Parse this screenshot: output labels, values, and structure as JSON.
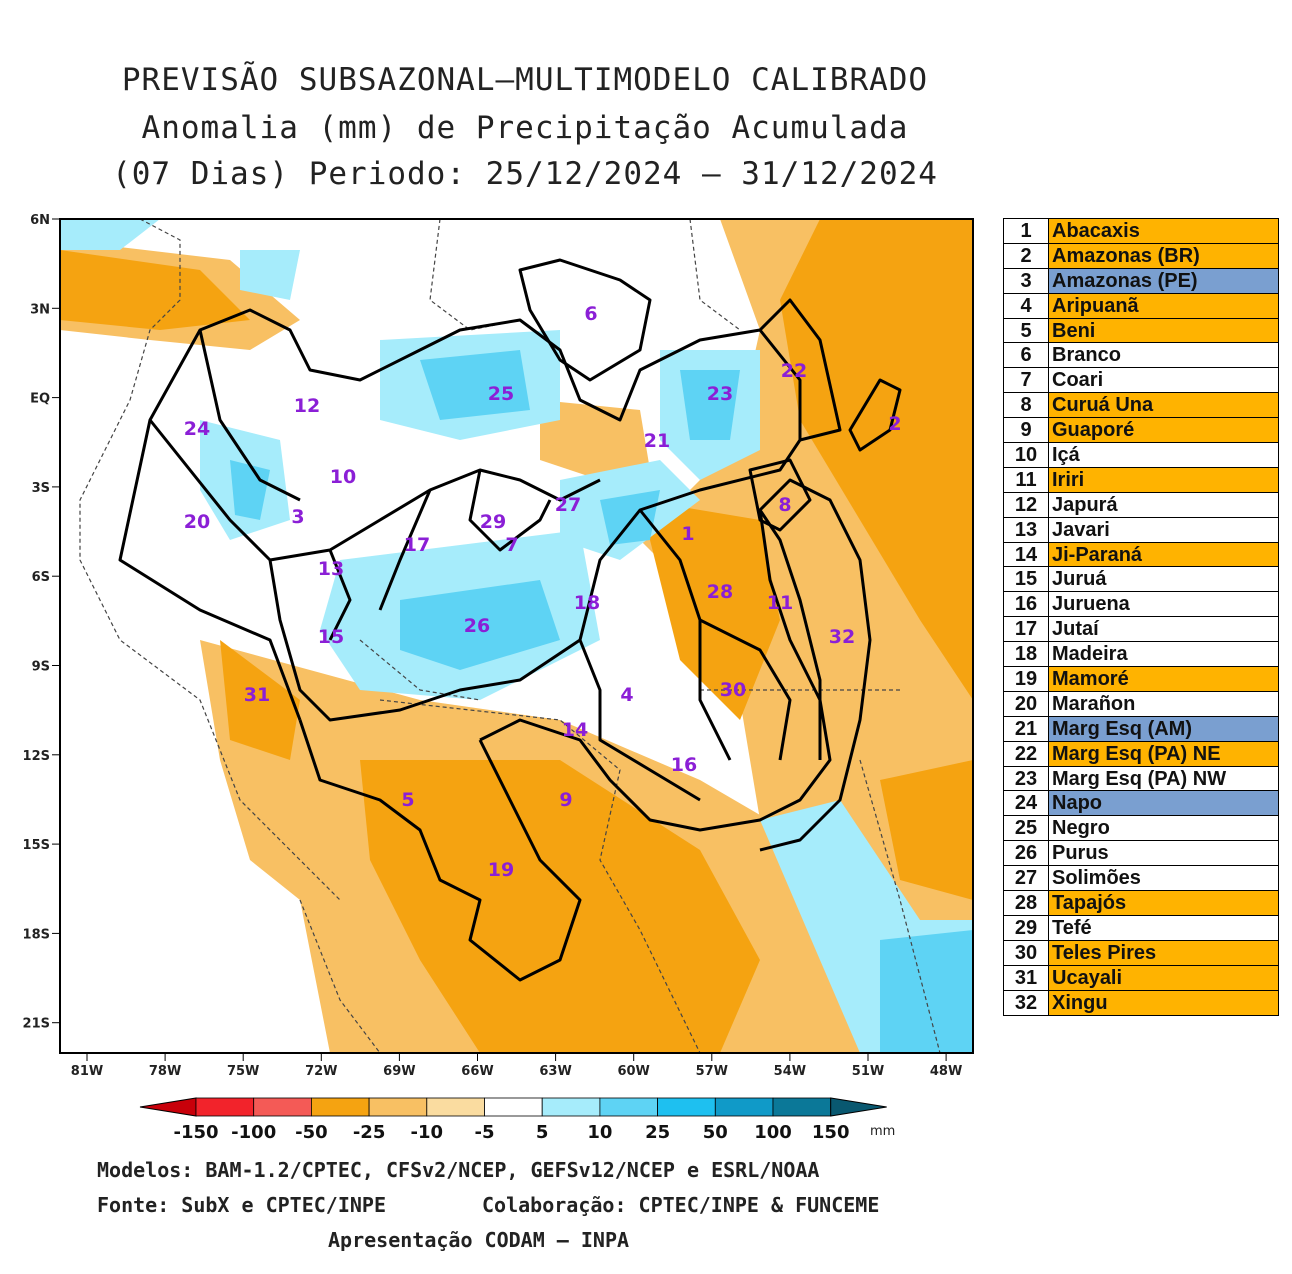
{
  "title": {
    "line1": "PREVISÃO SUBSAZONAL—MULTIMODELO CALIBRADO",
    "line2": "Anomalia (mm) de Precipitação Acumulada",
    "line3": "(07 Dias) Periodo: 25/12/2024 — 31/12/2024"
  },
  "map": {
    "lat_labels": [
      "6N",
      "3N",
      "EQ",
      "3S",
      "6S",
      "9S",
      "12S",
      "15S",
      "18S",
      "21S"
    ],
    "lon_labels": [
      "81W",
      "78W",
      "75W",
      "72W",
      "69W",
      "66W",
      "63W",
      "60W",
      "57W",
      "54W",
      "51W",
      "48W"
    ],
    "basin_labels": [
      "1",
      "2",
      "3",
      "4",
      "5",
      "6",
      "7",
      "8",
      "9",
      "10",
      "11",
      "12",
      "13",
      "14",
      "15",
      "16",
      "17",
      "18",
      "19",
      "20",
      "21",
      "22",
      "23",
      "24",
      "25",
      "26",
      "27",
      "28",
      "29",
      "30",
      "31",
      "32"
    ]
  },
  "colorbar": {
    "labels": [
      "-150",
      "-100",
      "-50",
      "-25",
      "-10",
      "-5",
      "5",
      "10",
      "25",
      "50",
      "100",
      "150"
    ],
    "unit": "mm",
    "colors": [
      "#c8000a",
      "#f2232b",
      "#f45a56",
      "#f5a311",
      "#f8c063",
      "#fadca0",
      "#ffffff",
      "#a6ecfb",
      "#5ed3f4",
      "#1ec0f0",
      "#109ac8",
      "#0b7898",
      "#095870"
    ]
  },
  "legend": [
    {
      "n": "1",
      "name": "Abacaxis",
      "color": "#ffb300"
    },
    {
      "n": "2",
      "name": "Amazonas (BR)",
      "color": "#ffb300"
    },
    {
      "n": "3",
      "name": "Amazonas (PE)",
      "color": "#7a9fd0"
    },
    {
      "n": "4",
      "name": "Aripuanã",
      "color": "#ffb300"
    },
    {
      "n": "5",
      "name": "Beni",
      "color": "#ffb300"
    },
    {
      "n": "6",
      "name": "Branco",
      "color": "#ffffff"
    },
    {
      "n": "7",
      "name": "Coari",
      "color": "#ffffff"
    },
    {
      "n": "8",
      "name": "Curuá Una",
      "color": "#ffb300"
    },
    {
      "n": "9",
      "name": "Guaporé",
      "color": "#ffb300"
    },
    {
      "n": "10",
      "name": "Içá",
      "color": "#ffffff"
    },
    {
      "n": "11",
      "name": "Iriri",
      "color": "#ffb300"
    },
    {
      "n": "12",
      "name": "Japurá",
      "color": "#ffffff"
    },
    {
      "n": "13",
      "name": "Javari",
      "color": "#ffffff"
    },
    {
      "n": "14",
      "name": "Ji-Paraná",
      "color": "#ffb300"
    },
    {
      "n": "15",
      "name": "Juruá",
      "color": "#ffffff"
    },
    {
      "n": "16",
      "name": "Juruena",
      "color": "#ffffff"
    },
    {
      "n": "17",
      "name": "Jutaí",
      "color": "#ffffff"
    },
    {
      "n": "18",
      "name": "Madeira",
      "color": "#ffffff"
    },
    {
      "n": "19",
      "name": "Mamoré",
      "color": "#ffb300"
    },
    {
      "n": "20",
      "name": "Marañon",
      "color": "#ffffff"
    },
    {
      "n": "21",
      "name": "Marg Esq (AM)",
      "color": "#7a9fd0"
    },
    {
      "n": "22",
      "name": "Marg Esq (PA) NE",
      "color": "#ffb300"
    },
    {
      "n": "23",
      "name": "Marg Esq (PA) NW",
      "color": "#ffffff"
    },
    {
      "n": "24",
      "name": "Napo",
      "color": "#7a9fd0"
    },
    {
      "n": "25",
      "name": "Negro",
      "color": "#ffffff"
    },
    {
      "n": "26",
      "name": "Purus",
      "color": "#ffffff"
    },
    {
      "n": "27",
      "name": "Solimões",
      "color": "#ffffff"
    },
    {
      "n": "28",
      "name": "Tapajós",
      "color": "#ffb300"
    },
    {
      "n": "29",
      "name": "Tefé",
      "color": "#ffffff"
    },
    {
      "n": "30",
      "name": "Teles Pires",
      "color": "#ffb300"
    },
    {
      "n": "31",
      "name": "Ucayali",
      "color": "#ffb300"
    },
    {
      "n": "32",
      "name": "Xingu",
      "color": "#ffb300"
    }
  ],
  "footer": {
    "models": "Modelos: BAM-1.2/CPTEC, CFSv2/NCEP, GEFSv12/NCEP e ESRL/NOAA",
    "source": "Fonte: SubX e CPTEC/INPE",
    "collab": "Colaboração: CPTEC/INPE & FUNCEME",
    "presentation": "Apresentação CODAM — INPA"
  }
}
